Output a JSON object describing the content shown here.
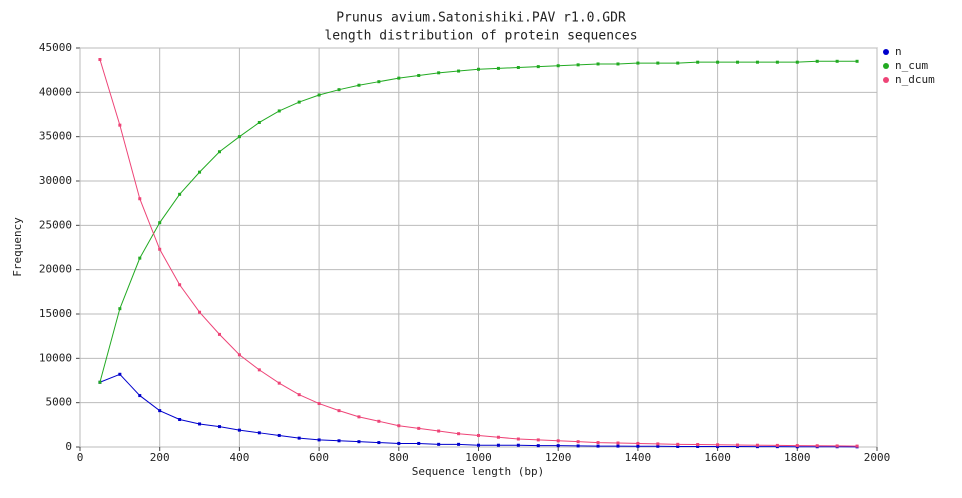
{
  "chart_data": {
    "type": "line",
    "title": "Prunus avium.Satonishiki.PAV r1.0.GDR",
    "subtitle": "length distribution of protein sequences",
    "x_label": "Sequence length (bp)",
    "y_label": "Frequency",
    "x": [
      50,
      100,
      150,
      200,
      250,
      300,
      350,
      400,
      450,
      500,
      550,
      600,
      650,
      700,
      750,
      800,
      850,
      900,
      950,
      1000,
      1050,
      1100,
      1150,
      1200,
      1250,
      1300,
      1350,
      1400,
      1450,
      1500,
      1550,
      1600,
      1650,
      1700,
      1750,
      1800,
      1850,
      1900,
      1950
    ],
    "series": [
      {
        "name": "n",
        "color": "#0000cc",
        "values": [
          7300,
          8200,
          5800,
          4100,
          3100,
          2600,
          2300,
          1900,
          1600,
          1300,
          1000,
          800,
          700,
          600,
          500,
          400,
          400,
          300,
          300,
          200,
          200,
          200,
          150,
          150,
          120,
          100,
          100,
          80,
          80,
          60,
          60,
          50,
          50,
          40,
          40,
          30,
          30,
          30,
          20
        ]
      },
      {
        "name": "n_cum",
        "color": "#22aa22",
        "values": [
          7300,
          15600,
          21300,
          25300,
          28500,
          31000,
          33300,
          35000,
          36600,
          37900,
          38900,
          39700,
          40300,
          40800,
          41200,
          41600,
          41900,
          42200,
          42400,
          42600,
          42700,
          42800,
          42900,
          43000,
          43100,
          43200,
          43200,
          43300,
          43300,
          43300,
          43400,
          43400,
          43400,
          43400,
          43400,
          43400,
          43500,
          43500,
          43500
        ]
      },
      {
        "name": "n_dcum",
        "color": "#ee4477",
        "values": [
          43700,
          36300,
          28000,
          22300,
          18300,
          15200,
          12700,
          10400,
          8700,
          7200,
          5900,
          4900,
          4100,
          3400,
          2900,
          2400,
          2100,
          1800,
          1500,
          1300,
          1100,
          900,
          800,
          700,
          600,
          500,
          450,
          400,
          350,
          300,
          280,
          250,
          220,
          200,
          180,
          160,
          140,
          120,
          100
        ]
      }
    ],
    "xlim": [
      0,
      2000
    ],
    "xticks": [
      0,
      200,
      400,
      600,
      800,
      1000,
      1200,
      1400,
      1600,
      1800,
      2000
    ],
    "ylim": [
      0,
      45000
    ],
    "yticks": [
      0,
      5000,
      10000,
      15000,
      20000,
      25000,
      30000,
      35000,
      40000,
      45000
    ],
    "grid": true,
    "legend": "right"
  }
}
